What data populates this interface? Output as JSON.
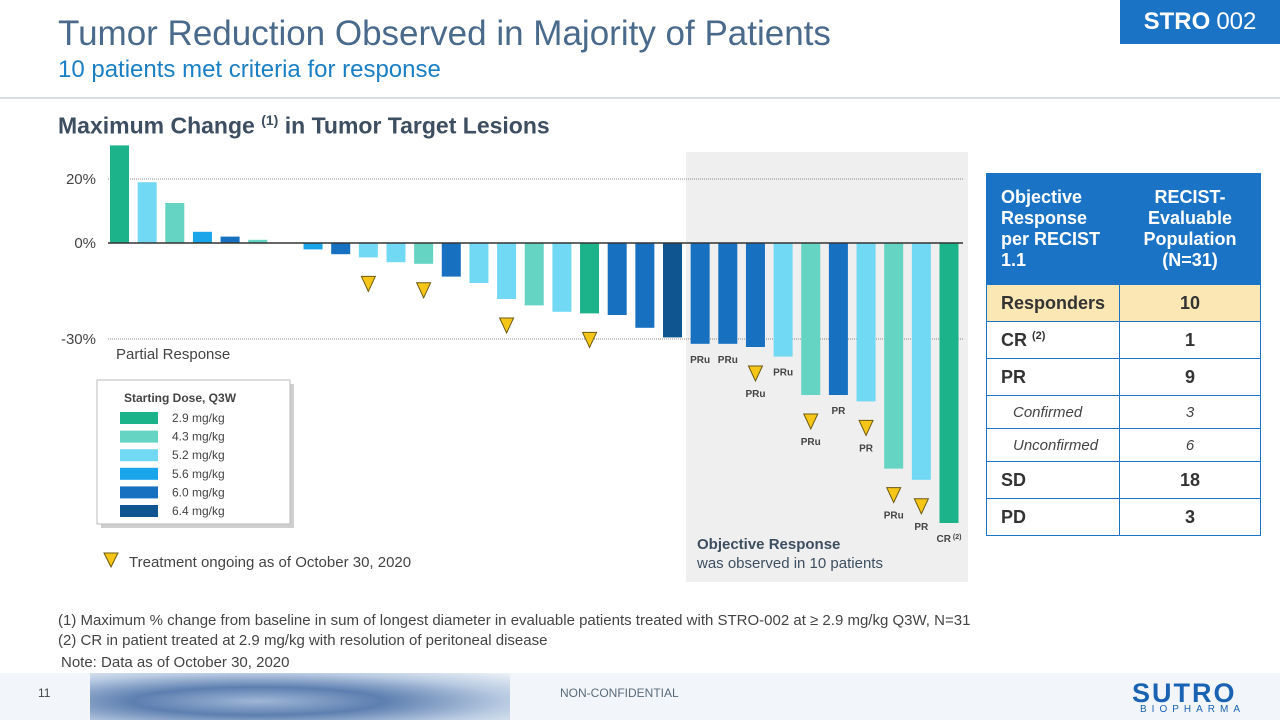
{
  "header": {
    "title": "Tumor Reduction Observed in Majority of Patients",
    "subtitle": "10 patients met criteria for response",
    "badge_bold": "STRO",
    "badge_num": "002"
  },
  "chart_title": {
    "main": "Maximum Change",
    "sup": "(1)",
    "rest": "in Tumor Target Lesions"
  },
  "chart_data": {
    "type": "bar",
    "title": "Maximum Change (1) in Tumor Target Lesions",
    "ylabel": "",
    "xlabel": "",
    "ylim": [
      -92,
      31
    ],
    "ticks": [
      {
        "value": 20,
        "label": "20%"
      },
      {
        "value": 0,
        "label": "0%"
      },
      {
        "value": -30,
        "label": "-30%"
      }
    ],
    "threshold_label": "Partial Response",
    "colors": {
      "2.9": "#1db38a",
      "4.3": "#65d4c3",
      "5.2": "#72d9f4",
      "5.6": "#1aa5ea",
      "6.0": "#1770c0",
      "6.4": "#0f5590"
    },
    "legend": {
      "title": "Starting Dose, Q3W",
      "entries": [
        {
          "label": "2.9 mg/kg",
          "dose": "2.9"
        },
        {
          "label": "4.3 mg/kg",
          "dose": "4.3"
        },
        {
          "label": "5.2 mg/kg",
          "dose": "5.2"
        },
        {
          "label": "5.6 mg/kg",
          "dose": "5.6"
        },
        {
          "label": "6.0 mg/kg",
          "dose": "6.0"
        },
        {
          "label": "6.4 mg/kg",
          "dose": "6.4"
        }
      ]
    },
    "marker_legend": "Treatment ongoing as of October 30, 2020",
    "response_box": {
      "title": "Objective Response",
      "text": "was observed in 10 patients"
    },
    "bars": [
      {
        "value": 30.5,
        "dose": "2.9",
        "ongoing": false,
        "label": ""
      },
      {
        "value": 19,
        "dose": "5.2",
        "ongoing": false,
        "label": ""
      },
      {
        "value": 12.5,
        "dose": "4.3",
        "ongoing": false,
        "label": ""
      },
      {
        "value": 3.5,
        "dose": "5.6",
        "ongoing": false,
        "label": ""
      },
      {
        "value": 2,
        "dose": "6.0",
        "ongoing": false,
        "label": ""
      },
      {
        "value": 1,
        "dose": "4.3",
        "ongoing": false,
        "label": ""
      },
      {
        "value": 0,
        "dose": "6.4",
        "ongoing": false,
        "label": ""
      },
      {
        "value": -2,
        "dose": "5.6",
        "ongoing": false,
        "label": ""
      },
      {
        "value": -3.5,
        "dose": "6.0",
        "ongoing": false,
        "label": ""
      },
      {
        "value": -4.5,
        "dose": "5.2",
        "ongoing": true,
        "label": ""
      },
      {
        "value": -6,
        "dose": "5.2",
        "ongoing": false,
        "label": ""
      },
      {
        "value": -6.5,
        "dose": "4.3",
        "ongoing": true,
        "label": ""
      },
      {
        "value": -10.5,
        "dose": "6.0",
        "ongoing": false,
        "label": ""
      },
      {
        "value": -12.5,
        "dose": "5.2",
        "ongoing": false,
        "label": ""
      },
      {
        "value": -17.5,
        "dose": "5.2",
        "ongoing": true,
        "label": ""
      },
      {
        "value": -19.5,
        "dose": "4.3",
        "ongoing": false,
        "label": ""
      },
      {
        "value": -21.5,
        "dose": "5.2",
        "ongoing": false,
        "label": ""
      },
      {
        "value": -22,
        "dose": "2.9",
        "ongoing": true,
        "label": ""
      },
      {
        "value": -22.5,
        "dose": "6.0",
        "ongoing": false,
        "label": ""
      },
      {
        "value": -26.5,
        "dose": "6.0",
        "ongoing": false,
        "label": ""
      },
      {
        "value": -29.5,
        "dose": "6.4",
        "ongoing": false,
        "label": ""
      },
      {
        "value": -31.5,
        "dose": "6.0",
        "ongoing": false,
        "label": "PRu"
      },
      {
        "value": -31.5,
        "dose": "6.0",
        "ongoing": false,
        "label": "PRu"
      },
      {
        "value": -32.5,
        "dose": "6.0",
        "ongoing": true,
        "label": "PRu"
      },
      {
        "value": -35.5,
        "dose": "5.2",
        "ongoing": false,
        "label": "PRu"
      },
      {
        "value": -47.5,
        "dose": "4.3",
        "ongoing": true,
        "label": "PRu"
      },
      {
        "value": -47.5,
        "dose": "6.0",
        "ongoing": false,
        "label": "PR"
      },
      {
        "value": -49.5,
        "dose": "5.2",
        "ongoing": true,
        "label": "PR"
      },
      {
        "value": -70.5,
        "dose": "4.3",
        "ongoing": true,
        "label": "PRu"
      },
      {
        "value": -74,
        "dose": "5.2",
        "ongoing": true,
        "label": "PR"
      },
      {
        "value": -87.5,
        "dose": "2.9",
        "ongoing": false,
        "label": "CR",
        "label_sup": "(2)"
      }
    ]
  },
  "table": {
    "header": [
      "Objective Response per RECIST 1.1",
      "RECIST-Evaluable Population (N=31)"
    ],
    "rows": [
      {
        "label": "Responders",
        "value": "10"
      },
      {
        "label": "CR",
        "sup": "(2)",
        "value": "1"
      },
      {
        "label": "PR",
        "value": "9"
      },
      {
        "label": "Confirmed",
        "value": "3"
      },
      {
        "label": "Unconfirmed",
        "value": "6"
      },
      {
        "label": "SD",
        "value": "18"
      },
      {
        "label": "PD",
        "value": "3"
      }
    ]
  },
  "footnotes": {
    "f1": "(1) Maximum % change from baseline in sum of longest diameter in evaluable patients treated with STRO-002 at ≥ 2.9 mg/kg Q3W, N=31",
    "f2": "(2) CR in patient treated at 2.9 mg/kg with resolution of peritoneal disease",
    "note": "Note: Data as of October 30, 2020"
  },
  "footer": {
    "page_number": "11",
    "classification": "NON-CONFIDENTIAL",
    "logo": "SUTRO",
    "logo_sub": "BIOPHARMA"
  }
}
